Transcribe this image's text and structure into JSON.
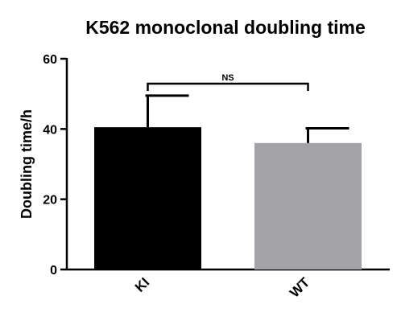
{
  "chart_data": {
    "type": "bar",
    "title": "K562 monoclonal doubling time",
    "xlabel": "",
    "ylabel": "Doubling time/h",
    "ylim": [
      0,
      60
    ],
    "yticks": [
      "0",
      "20",
      "40",
      "60"
    ],
    "categories": [
      "KI",
      "WT"
    ],
    "values": [
      40.5,
      36.0
    ],
    "error_upper": [
      49.5,
      40.2
    ],
    "colors": [
      "#000000",
      "#a2a2a7"
    ],
    "significance": {
      "pair": [
        "KI",
        "WT"
      ],
      "label": "NS"
    },
    "grid": false,
    "legend": "none"
  }
}
